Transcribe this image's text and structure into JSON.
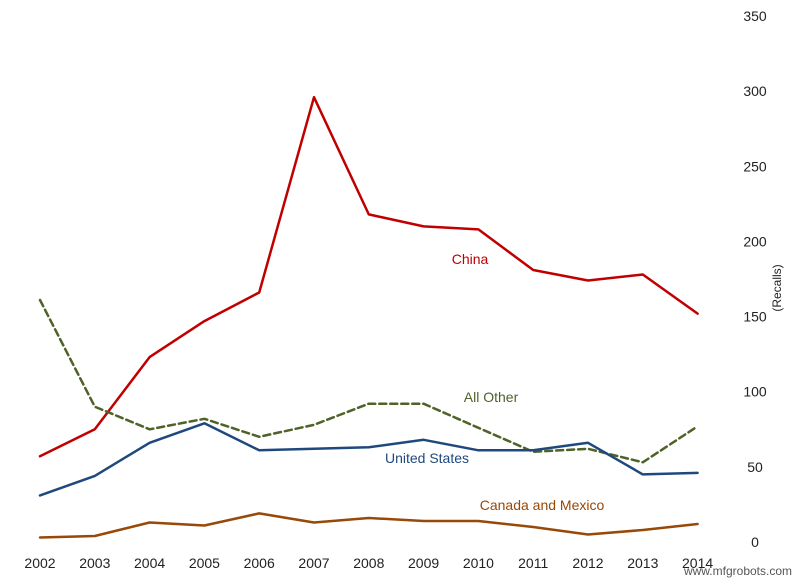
{
  "chart_data": {
    "type": "line",
    "title": "",
    "xlabel": "",
    "ylabel": "(Recalls)",
    "ylim": [
      0,
      350
    ],
    "yticks": [
      0,
      50,
      100,
      150,
      200,
      250,
      300,
      350
    ],
    "grid": false,
    "x": [
      "2002",
      "2003",
      "2004",
      "2005",
      "2006",
      "2007",
      "2008",
      "2009",
      "2010",
      "2011",
      "2012",
      "2013",
      "2014"
    ],
    "series": [
      {
        "name": "China",
        "color": "#c00000",
        "dash": "solid",
        "values": [
          57,
          75,
          123,
          147,
          166,
          296,
          218,
          210,
          208,
          181,
          174,
          178,
          152
        ]
      },
      {
        "name": "All Other",
        "color": "#4f6228",
        "dash": "dashed",
        "values": [
          161,
          90,
          75,
          82,
          70,
          78,
          92,
          92,
          76,
          60,
          62,
          53,
          77
        ]
      },
      {
        "name": "United States",
        "color": "#1f497d",
        "dash": "solid",
        "values": [
          31,
          44,
          66,
          79,
          61,
          62,
          63,
          68,
          61,
          61,
          66,
          45,
          46
        ]
      },
      {
        "name": "Canada and Mexico",
        "color": "#984807",
        "dash": "solid",
        "values": [
          3,
          4,
          13,
          11,
          19,
          13,
          16,
          14,
          14,
          10,
          5,
          8,
          12
        ]
      }
    ]
  },
  "watermark": "www.mfgrobots.com"
}
